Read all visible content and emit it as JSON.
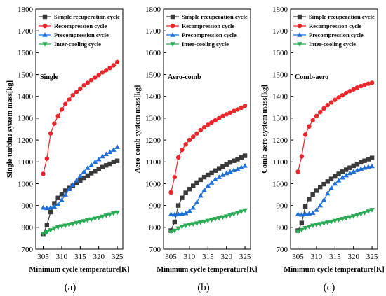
{
  "chart_data": [
    {
      "type": "line",
      "panel_label": "(a)",
      "annotation": "Single",
      "xlabel": "Minimum cycle temperature[K]",
      "ylabel": "Single turbine system mass[kg]",
      "xlim": [
        303,
        326.5
      ],
      "ylim": [
        700,
        1800
      ],
      "xticks": [
        305,
        310,
        315,
        320,
        325
      ],
      "yticks": [
        700,
        800,
        900,
        1000,
        1100,
        1200,
        1300,
        1400,
        1500,
        1600,
        1700,
        1800
      ],
      "legend_position": "top-right",
      "x": [
        305,
        306,
        307,
        308,
        309,
        310,
        311,
        312,
        313,
        314,
        315,
        316,
        317,
        318,
        319,
        320,
        321,
        322,
        323,
        324,
        325
      ],
      "series": [
        {
          "name": "Simple recuperation cycle",
          "color": "#3a3a3a",
          "marker": "square",
          "values": [
            770,
            810,
            870,
            910,
            935,
            952,
            968,
            980,
            990,
            1003,
            1015,
            1027,
            1037,
            1048,
            1058,
            1067,
            1076,
            1084,
            1091,
            1099,
            1105
          ]
        },
        {
          "name": "Recompression cycle",
          "color": "#e8262b",
          "marker": "circle",
          "values": [
            1045,
            1115,
            1230,
            1275,
            1310,
            1340,
            1365,
            1385,
            1405,
            1420,
            1435,
            1450,
            1462,
            1475,
            1487,
            1498,
            1510,
            1520,
            1530,
            1542,
            1557
          ]
        },
        {
          "name": "Precompression cycle",
          "color": "#1f6fd6",
          "marker": "triangle-up",
          "values": [
            890,
            888,
            890,
            895,
            905,
            925,
            950,
            975,
            995,
            1015,
            1035,
            1055,
            1072,
            1085,
            1100,
            1112,
            1125,
            1135,
            1145,
            1155,
            1168
          ]
        },
        {
          "name": "Inter-cooling cycle",
          "color": "#2aaa55",
          "marker": "triangle-down",
          "values": [
            770,
            778,
            787,
            795,
            800,
            805,
            808,
            812,
            816,
            820,
            824,
            828,
            832,
            836,
            840,
            844,
            849,
            854,
            859,
            864,
            868
          ]
        }
      ]
    },
    {
      "type": "line",
      "panel_label": "(b)",
      "annotation": "Aero-comb",
      "xlabel": "Minimum cycle temperature[K]",
      "ylabel": "Aero-comb system mass[kg]",
      "xlim": [
        303,
        326.5
      ],
      "ylim": [
        700,
        1800
      ],
      "xticks": [
        305,
        310,
        315,
        320,
        325
      ],
      "yticks": [
        700,
        800,
        900,
        1000,
        1100,
        1200,
        1300,
        1400,
        1500,
        1600,
        1700,
        1800
      ],
      "legend_position": "top-right",
      "x": [
        305,
        306,
        307,
        308,
        309,
        310,
        311,
        312,
        313,
        314,
        315,
        316,
        317,
        318,
        319,
        320,
        321,
        322,
        323,
        324,
        325
      ],
      "series": [
        {
          "name": "Simple recuperation cycle",
          "color": "#3a3a3a",
          "marker": "square",
          "values": [
            785,
            825,
            900,
            935,
            958,
            975,
            990,
            1005,
            1018,
            1030,
            1040,
            1050,
            1060,
            1070,
            1079,
            1088,
            1097,
            1105,
            1112,
            1120,
            1128
          ]
        },
        {
          "name": "Recompression cycle",
          "color": "#e8262b",
          "marker": "circle",
          "values": [
            960,
            1030,
            1120,
            1155,
            1180,
            1200,
            1215,
            1230,
            1245,
            1258,
            1270,
            1280,
            1290,
            1300,
            1310,
            1318,
            1326,
            1333,
            1340,
            1348,
            1357
          ]
        },
        {
          "name": "Precompression cycle",
          "color": "#1f6fd6",
          "marker": "triangle-up",
          "values": [
            860,
            858,
            860,
            862,
            865,
            875,
            890,
            915,
            945,
            970,
            990,
            1005,
            1020,
            1030,
            1040,
            1048,
            1055,
            1062,
            1068,
            1075,
            1082
          ]
        },
        {
          "name": "Inter-cooling cycle",
          "color": "#2aaa55",
          "marker": "triangle-down",
          "values": [
            780,
            785,
            795,
            803,
            808,
            812,
            815,
            818,
            822,
            826,
            830,
            834,
            838,
            842,
            846,
            850,
            855,
            860,
            866,
            872,
            878
          ]
        }
      ]
    },
    {
      "type": "line",
      "panel_label": "(c)",
      "annotation": "Comb-aero",
      "xlabel": "Minimum cycle temperature[K]",
      "ylabel": "Comb-aero system mass[kg]",
      "xlim": [
        303,
        326.5
      ],
      "ylim": [
        700,
        1800
      ],
      "xticks": [
        305,
        310,
        315,
        320,
        325
      ],
      "yticks": [
        700,
        800,
        900,
        1000,
        1100,
        1200,
        1300,
        1400,
        1500,
        1600,
        1700,
        1800
      ],
      "legend_position": "top-right",
      "x": [
        305,
        306,
        307,
        308,
        309,
        310,
        311,
        312,
        313,
        314,
        315,
        316,
        317,
        318,
        319,
        320,
        321,
        322,
        323,
        324,
        325
      ],
      "series": [
        {
          "name": "Simple recuperation cycle",
          "color": "#3a3a3a",
          "marker": "square",
          "values": [
            785,
            820,
            895,
            930,
            950,
            968,
            985,
            998,
            1010,
            1022,
            1033,
            1045,
            1055,
            1064,
            1073,
            1082,
            1090,
            1098,
            1105,
            1112,
            1118
          ]
        },
        {
          "name": "Recompression cycle",
          "color": "#e8262b",
          "marker": "circle",
          "values": [
            1055,
            1125,
            1225,
            1262,
            1290,
            1310,
            1328,
            1345,
            1360,
            1372,
            1384,
            1395,
            1405,
            1415,
            1424,
            1432,
            1440,
            1447,
            1453,
            1458,
            1462
          ]
        },
        {
          "name": "Precompression cycle",
          "color": "#1f6fd6",
          "marker": "triangle-up",
          "values": [
            860,
            858,
            860,
            862,
            866,
            880,
            900,
            925,
            955,
            980,
            1000,
            1015,
            1028,
            1038,
            1048,
            1055,
            1062,
            1068,
            1073,
            1078,
            1080
          ]
        },
        {
          "name": "Inter-cooling cycle",
          "color": "#2aaa55",
          "marker": "triangle-down",
          "values": [
            782,
            788,
            797,
            803,
            808,
            812,
            815,
            818,
            822,
            826,
            830,
            834,
            838,
            842,
            846,
            851,
            856,
            861,
            867,
            873,
            880
          ]
        }
      ]
    }
  ]
}
